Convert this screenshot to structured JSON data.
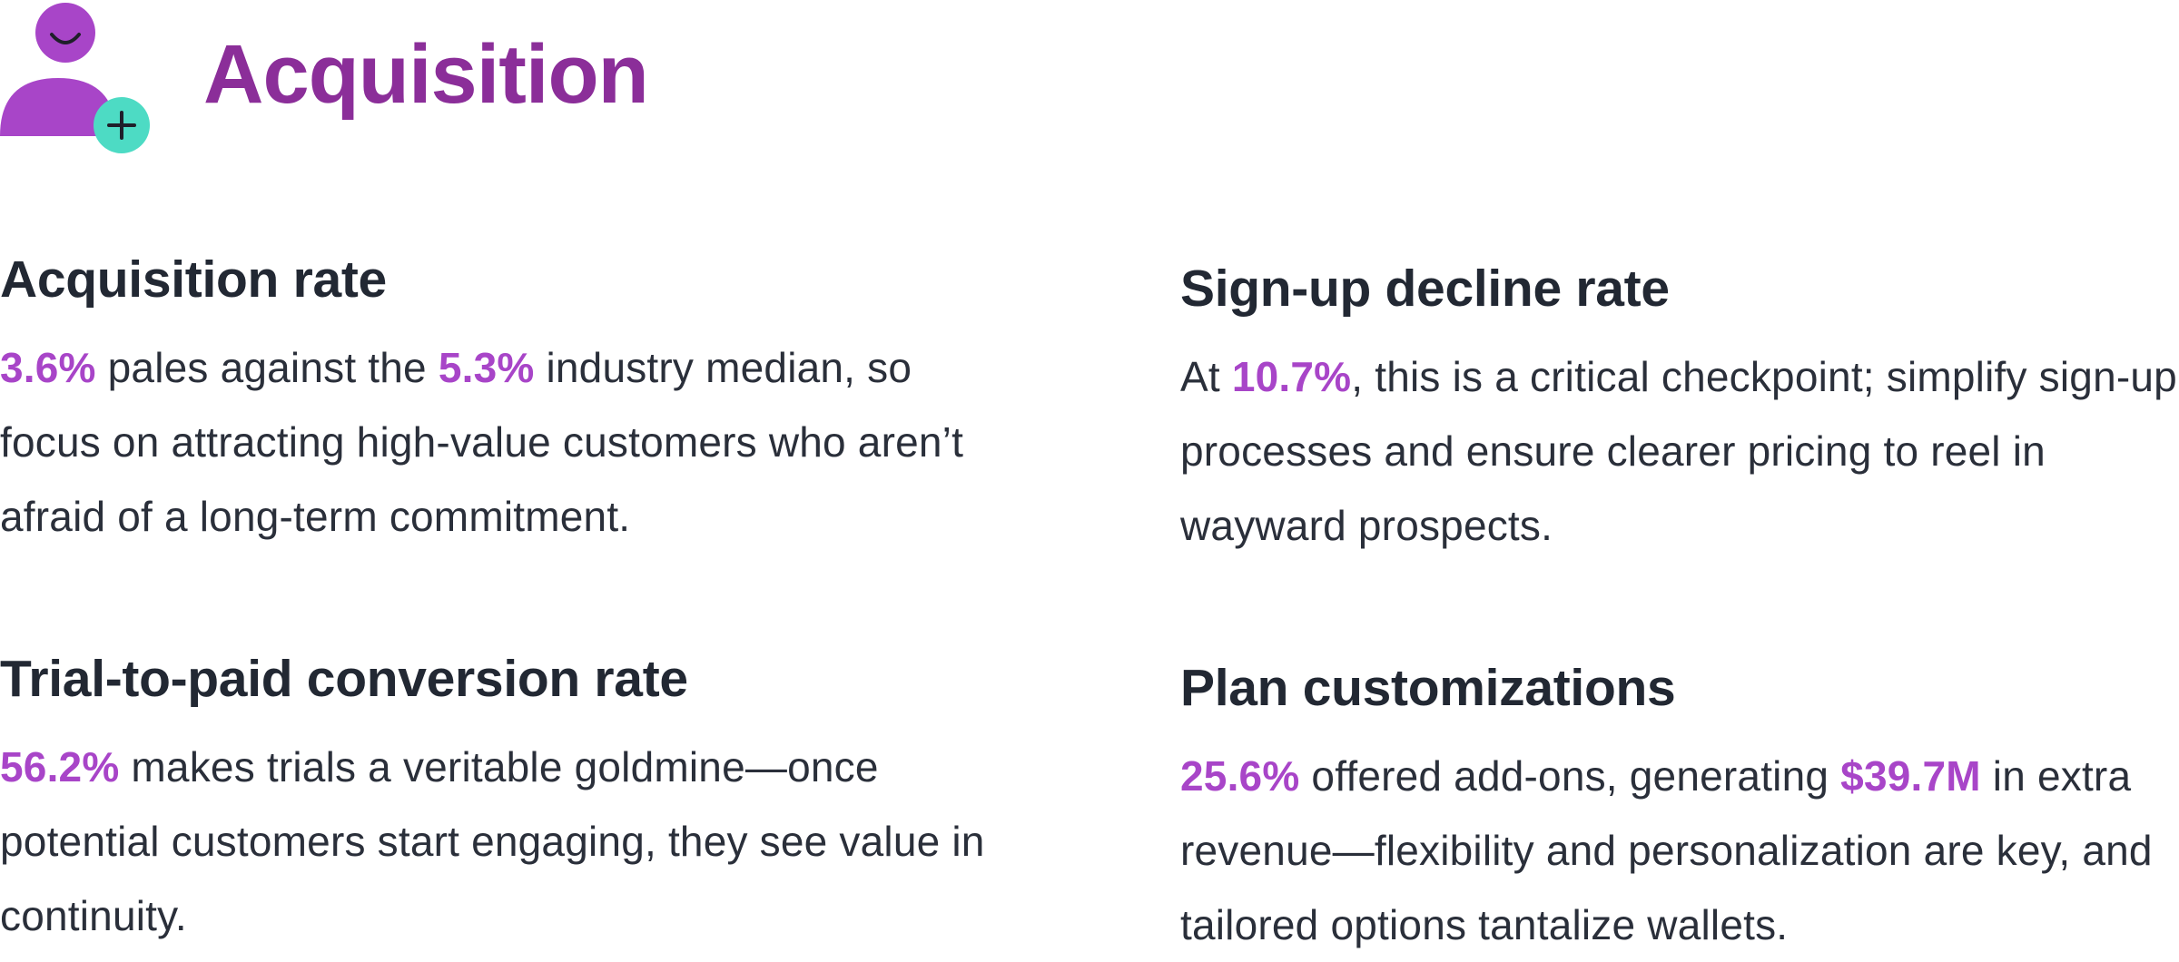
{
  "header": {
    "title": "Acquisition",
    "icon": "user-add-icon",
    "colors": {
      "title": "#8b2e99",
      "icon_person": "#a845c8",
      "icon_plus_badge": "#4ddbc4",
      "stat_highlight": "#a845c8",
      "text": "#222833"
    }
  },
  "sections": {
    "acquisition_rate": {
      "heading": "Acquisition rate",
      "stat1": "3.6%",
      "text1": " pales against the ",
      "stat2": "5.3%",
      "text2": " industry median, so focus on attracting high-value customers who aren’t afraid of a long-term commitment."
    },
    "signup_decline_rate": {
      "heading": "Sign-up decline rate",
      "text0": "At ",
      "stat1": "10.7%",
      "text1": ", this is a critical checkpoint; simplify sign-up processes and ensure clearer pricing to reel in wayward prospects."
    },
    "trial_to_paid": {
      "heading": "Trial-to-paid conversion rate",
      "stat1": "56.2%",
      "text1": " makes trials a veritable goldmine—once potential customers start engaging, they see value in continuity."
    },
    "plan_customizations": {
      "heading": "Plan customizations",
      "stat1": "25.6%",
      "text1": " offered add-ons, generating ",
      "stat2": "$39.7M",
      "text2": " in extra revenue—flexibility and personalization are key, and tailored options tantalize wallets."
    }
  }
}
